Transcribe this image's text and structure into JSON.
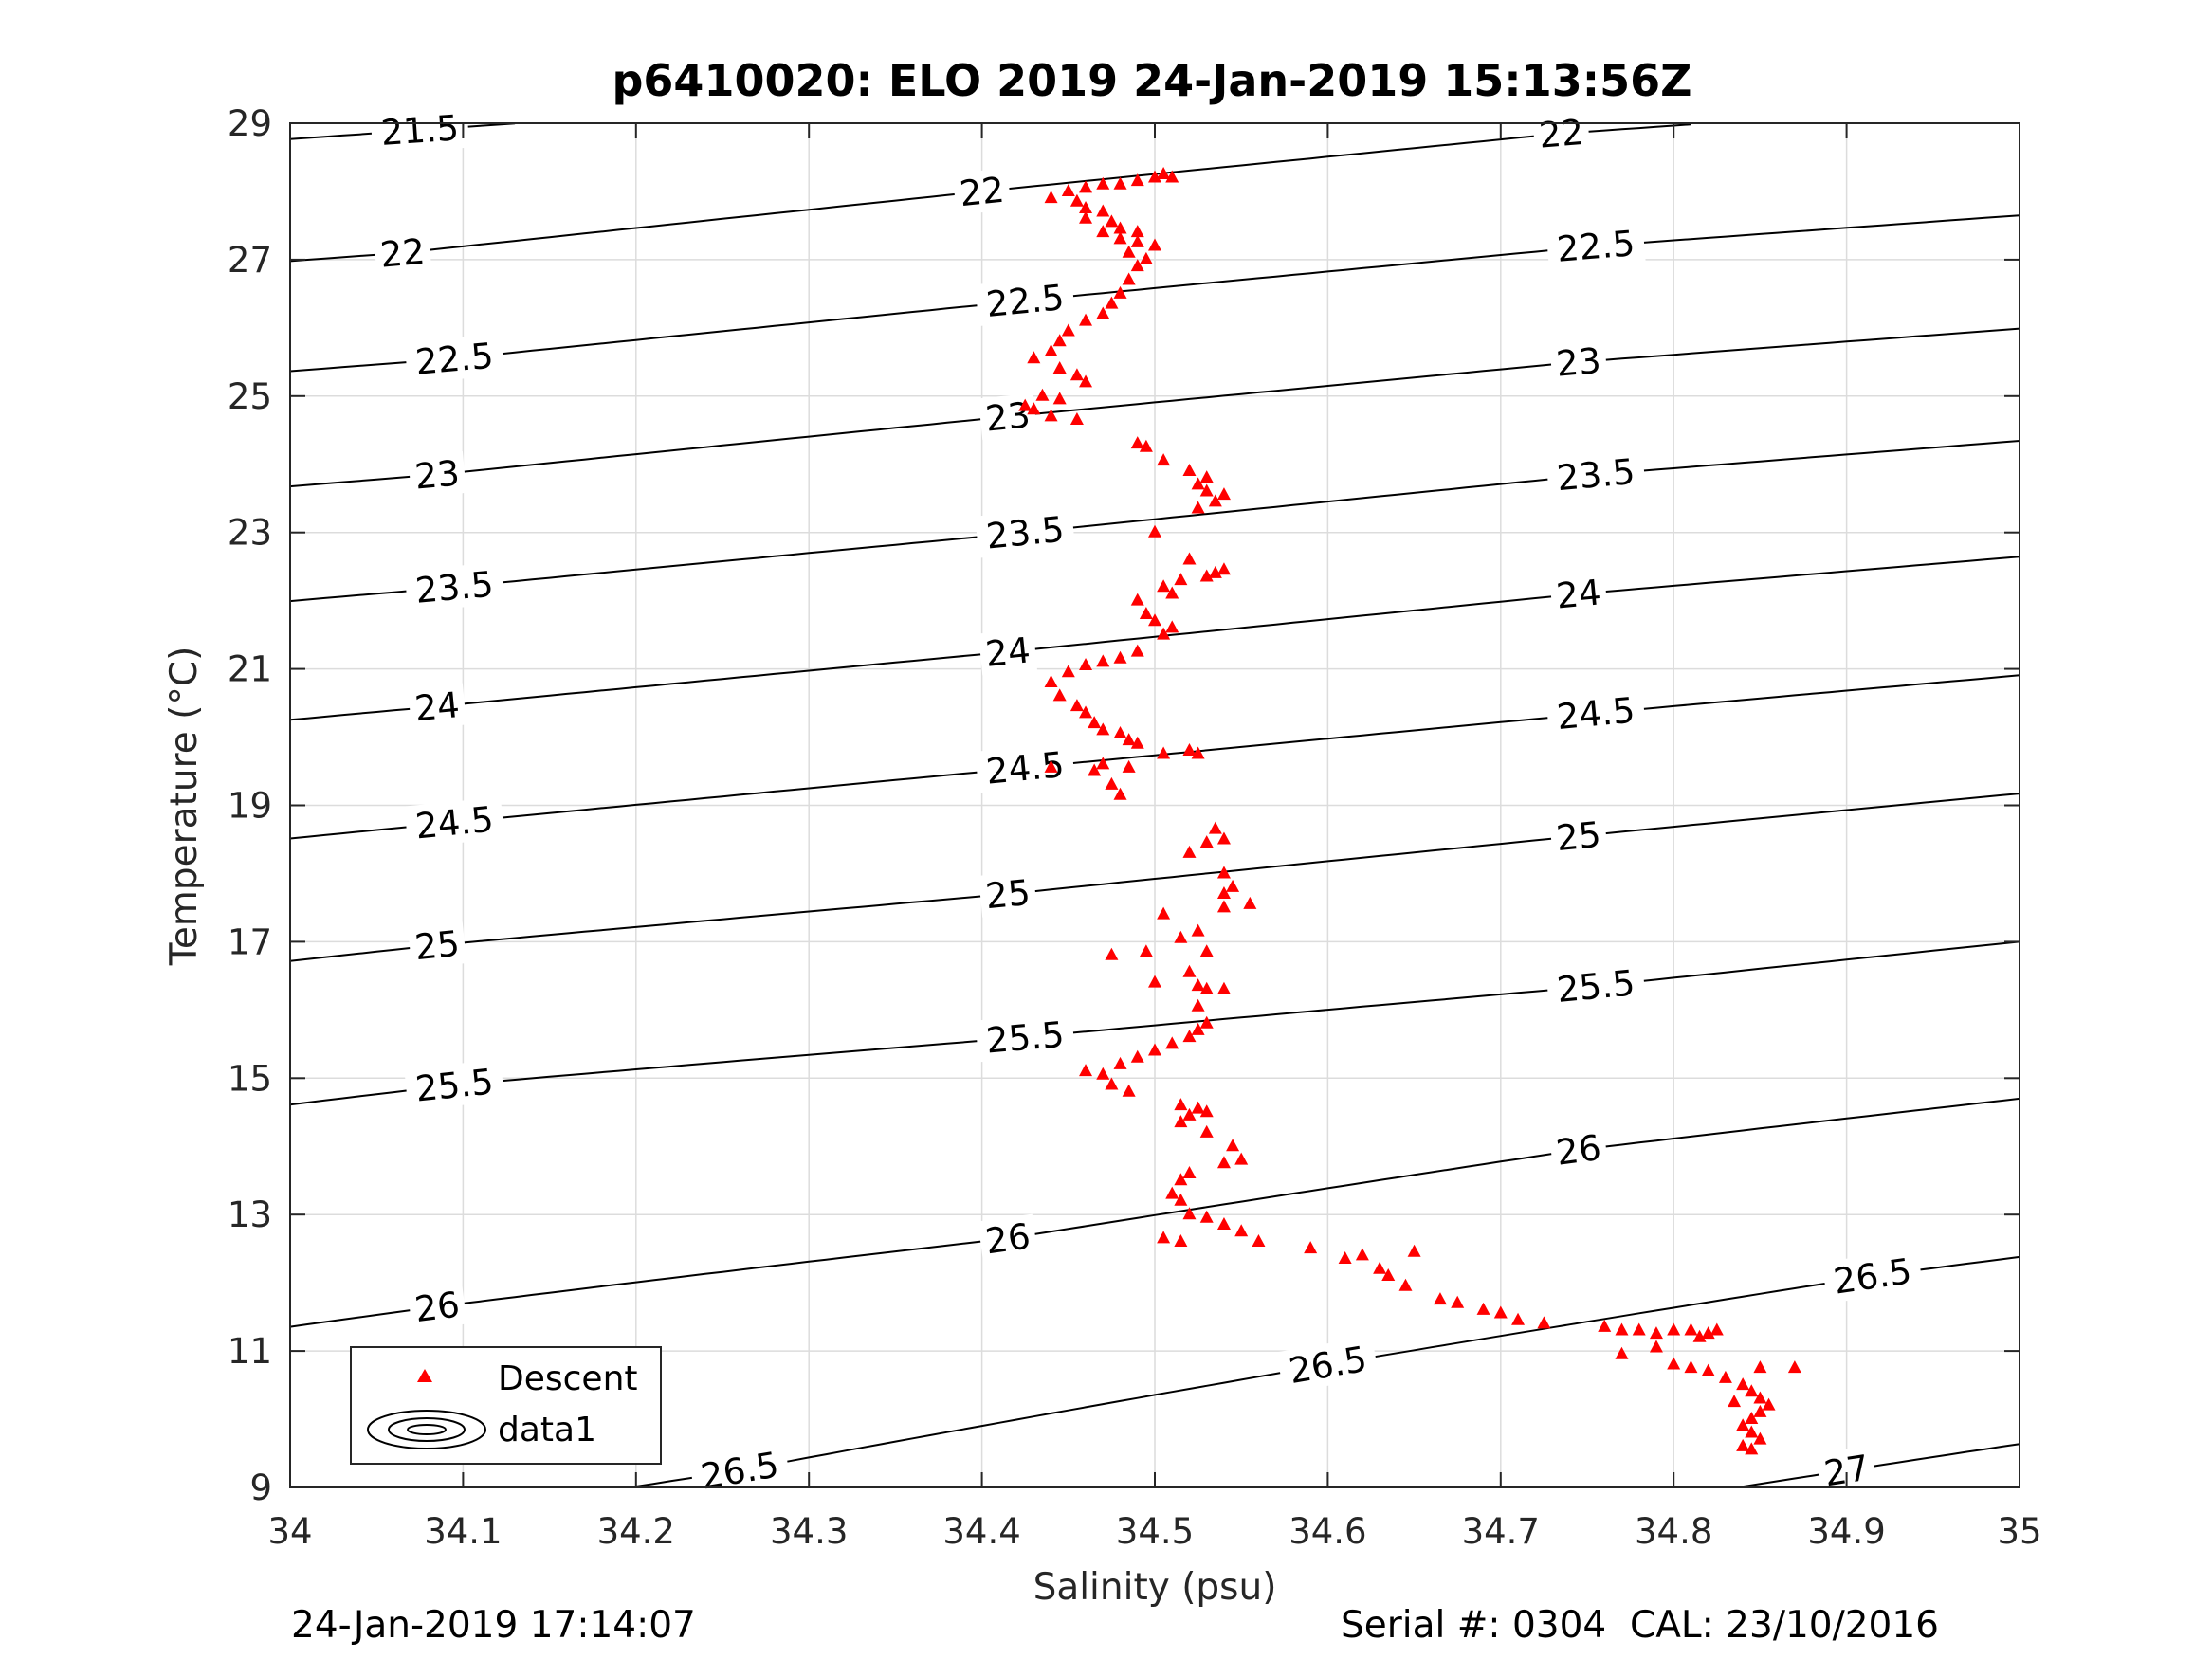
{
  "chart_data": {
    "type": "scatter",
    "title": "p6410020: ELO 2019 24-Jan-2019 15:13:56Z",
    "xlabel": "Salinity (psu)",
    "ylabel": "Temperature (°C)",
    "xlim": [
      34,
      35
    ],
    "ylim": [
      9,
      29
    ],
    "xticks": [
      34,
      34.1,
      34.2,
      34.3,
      34.4,
      34.5,
      34.6,
      34.7,
      34.8,
      34.9,
      35
    ],
    "xtick_labels": [
      "34",
      "34.1",
      "34.2",
      "34.3",
      "34.4",
      "34.5",
      "34.6",
      "34.7",
      "34.8",
      "34.9",
      "35"
    ],
    "yticks": [
      9,
      11,
      13,
      15,
      17,
      19,
      21,
      23,
      25,
      27,
      29
    ],
    "ytick_labels": [
      "9",
      "11",
      "13",
      "15",
      "17",
      "19",
      "21",
      "23",
      "25",
      "27",
      "29"
    ],
    "grid": true,
    "legend_position": "bottom-left",
    "colors": {
      "descent": "#ff0000",
      "contour": "#000000",
      "grid": "#dcdcdc"
    },
    "series": [
      {
        "name": "Descent",
        "marker": "triangle",
        "points": [
          [
            34.45,
            28.0
          ],
          [
            34.46,
            28.05
          ],
          [
            34.47,
            28.1
          ],
          [
            34.48,
            28.1
          ],
          [
            34.49,
            28.15
          ],
          [
            34.5,
            28.2
          ],
          [
            34.51,
            28.2
          ],
          [
            34.505,
            28.25
          ],
          [
            34.44,
            27.9
          ],
          [
            34.455,
            27.85
          ],
          [
            34.46,
            27.75
          ],
          [
            34.47,
            27.7
          ],
          [
            34.46,
            27.6
          ],
          [
            34.475,
            27.55
          ],
          [
            34.48,
            27.45
          ],
          [
            34.47,
            27.4
          ],
          [
            34.49,
            27.4
          ],
          [
            34.48,
            27.3
          ],
          [
            34.49,
            27.25
          ],
          [
            34.5,
            27.2
          ],
          [
            34.485,
            27.1
          ],
          [
            34.495,
            27.0
          ],
          [
            34.49,
            26.9
          ],
          [
            34.485,
            26.7
          ],
          [
            34.48,
            26.5
          ],
          [
            34.475,
            26.35
          ],
          [
            34.47,
            26.2
          ],
          [
            34.46,
            26.1
          ],
          [
            34.45,
            25.95
          ],
          [
            34.445,
            25.8
          ],
          [
            34.44,
            25.65
          ],
          [
            34.43,
            25.55
          ],
          [
            34.445,
            25.4
          ],
          [
            34.455,
            25.3
          ],
          [
            34.46,
            25.2
          ],
          [
            34.435,
            25.0
          ],
          [
            34.445,
            24.95
          ],
          [
            34.425,
            24.85
          ],
          [
            34.43,
            24.8
          ],
          [
            34.44,
            24.7
          ],
          [
            34.455,
            24.65
          ],
          [
            34.49,
            24.3
          ],
          [
            34.495,
            24.25
          ],
          [
            34.505,
            24.05
          ],
          [
            34.52,
            23.9
          ],
          [
            34.53,
            23.8
          ],
          [
            34.525,
            23.7
          ],
          [
            34.53,
            23.6
          ],
          [
            34.54,
            23.55
          ],
          [
            34.535,
            23.45
          ],
          [
            34.525,
            23.35
          ],
          [
            34.5,
            23.0
          ],
          [
            34.52,
            22.6
          ],
          [
            34.515,
            22.3
          ],
          [
            34.53,
            22.35
          ],
          [
            34.535,
            22.4
          ],
          [
            34.54,
            22.45
          ],
          [
            34.505,
            22.2
          ],
          [
            34.51,
            22.1
          ],
          [
            34.49,
            22.0
          ],
          [
            34.495,
            21.8
          ],
          [
            34.5,
            21.7
          ],
          [
            34.51,
            21.6
          ],
          [
            34.505,
            21.5
          ],
          [
            34.49,
            21.25
          ],
          [
            34.48,
            21.15
          ],
          [
            34.47,
            21.1
          ],
          [
            34.46,
            21.05
          ],
          [
            34.45,
            20.95
          ],
          [
            34.44,
            20.8
          ],
          [
            34.445,
            20.6
          ],
          [
            34.455,
            20.45
          ],
          [
            34.46,
            20.35
          ],
          [
            34.465,
            20.2
          ],
          [
            34.47,
            20.1
          ],
          [
            34.48,
            20.05
          ],
          [
            34.485,
            19.95
          ],
          [
            34.49,
            19.9
          ],
          [
            34.505,
            19.75
          ],
          [
            34.52,
            19.8
          ],
          [
            34.525,
            19.75
          ],
          [
            34.44,
            19.55
          ],
          [
            34.465,
            19.5
          ],
          [
            34.475,
            19.3
          ],
          [
            34.48,
            19.15
          ],
          [
            34.47,
            19.6
          ],
          [
            34.485,
            19.55
          ],
          [
            34.535,
            18.65
          ],
          [
            34.54,
            18.5
          ],
          [
            34.53,
            18.45
          ],
          [
            34.52,
            18.3
          ],
          [
            34.54,
            18.0
          ],
          [
            34.545,
            17.8
          ],
          [
            34.54,
            17.7
          ],
          [
            34.555,
            17.55
          ],
          [
            34.54,
            17.5
          ],
          [
            34.505,
            17.4
          ],
          [
            34.525,
            17.15
          ],
          [
            34.515,
            17.05
          ],
          [
            34.475,
            16.8
          ],
          [
            34.495,
            16.85
          ],
          [
            34.53,
            16.85
          ],
          [
            34.52,
            16.55
          ],
          [
            34.525,
            16.35
          ],
          [
            34.53,
            16.3
          ],
          [
            34.54,
            16.3
          ],
          [
            34.5,
            16.4
          ],
          [
            34.525,
            16.05
          ],
          [
            34.53,
            15.8
          ],
          [
            34.525,
            15.7
          ],
          [
            34.52,
            15.6
          ],
          [
            34.51,
            15.5
          ],
          [
            34.5,
            15.4
          ],
          [
            34.49,
            15.3
          ],
          [
            34.48,
            15.2
          ],
          [
            34.46,
            15.1
          ],
          [
            34.47,
            15.05
          ],
          [
            34.475,
            14.9
          ],
          [
            34.485,
            14.8
          ],
          [
            34.515,
            14.6
          ],
          [
            34.52,
            14.45
          ],
          [
            34.525,
            14.55
          ],
          [
            34.53,
            14.5
          ],
          [
            34.515,
            14.35
          ],
          [
            34.53,
            14.2
          ],
          [
            34.545,
            14.0
          ],
          [
            34.55,
            13.8
          ],
          [
            34.54,
            13.75
          ],
          [
            34.52,
            13.6
          ],
          [
            34.515,
            13.5
          ],
          [
            34.51,
            13.3
          ],
          [
            34.515,
            13.2
          ],
          [
            34.52,
            13.0
          ],
          [
            34.53,
            12.95
          ],
          [
            34.54,
            12.85
          ],
          [
            34.55,
            12.75
          ],
          [
            34.56,
            12.6
          ],
          [
            34.505,
            12.65
          ],
          [
            34.515,
            12.6
          ],
          [
            34.59,
            12.5
          ],
          [
            34.61,
            12.35
          ],
          [
            34.62,
            12.4
          ],
          [
            34.63,
            12.2
          ],
          [
            34.635,
            12.1
          ],
          [
            34.645,
            11.95
          ],
          [
            34.65,
            12.45
          ],
          [
            34.665,
            11.75
          ],
          [
            34.675,
            11.7
          ],
          [
            34.69,
            11.6
          ],
          [
            34.7,
            11.55
          ],
          [
            34.71,
            11.45
          ],
          [
            34.725,
            11.4
          ],
          [
            34.76,
            11.35
          ],
          [
            34.77,
            11.3
          ],
          [
            34.78,
            11.3
          ],
          [
            34.79,
            11.25
          ],
          [
            34.8,
            11.3
          ],
          [
            34.81,
            11.3
          ],
          [
            34.82,
            11.25
          ],
          [
            34.825,
            11.3
          ],
          [
            34.815,
            11.2
          ],
          [
            34.77,
            10.95
          ],
          [
            34.79,
            11.05
          ],
          [
            34.8,
            10.8
          ],
          [
            34.81,
            10.75
          ],
          [
            34.82,
            10.7
          ],
          [
            34.83,
            10.6
          ],
          [
            34.84,
            10.5
          ],
          [
            34.845,
            10.4
          ],
          [
            34.85,
            10.3
          ],
          [
            34.855,
            10.2
          ],
          [
            34.85,
            10.1
          ],
          [
            34.845,
            10.0
          ],
          [
            34.84,
            9.9
          ],
          [
            34.845,
            9.8
          ],
          [
            34.85,
            9.7
          ],
          [
            34.84,
            9.6
          ],
          [
            34.845,
            9.55
          ],
          [
            34.85,
            10.75
          ],
          [
            34.87,
            10.75
          ],
          [
            34.835,
            10.25
          ]
        ]
      }
    ],
    "isopycnals": [
      {
        "level": "21.5",
        "labels": [
          {
            "text": "21.5",
            "s": 34.075,
            "t": 28.9
          }
        ]
      },
      {
        "level": "22",
        "labels": [
          {
            "text": "22",
            "s": 34.065,
            "t": 27.1
          },
          {
            "text": "22",
            "s": 34.4,
            "t": 28.0
          },
          {
            "text": "22",
            "s": 34.735,
            "t": 28.85
          }
        ]
      },
      {
        "level": "22.5",
        "labels": [
          {
            "text": "22.5",
            "s": 34.095,
            "t": 25.55
          },
          {
            "text": "22.5",
            "s": 34.425,
            "t": 26.4
          },
          {
            "text": "22.5",
            "s": 34.755,
            "t": 27.2
          }
        ]
      },
      {
        "level": "23",
        "labels": [
          {
            "text": "23",
            "s": 34.085,
            "t": 23.85
          },
          {
            "text": "23",
            "s": 34.415,
            "t": 24.7
          },
          {
            "text": "23",
            "s": 34.745,
            "t": 25.5
          }
        ]
      },
      {
        "level": "23.5",
        "labels": [
          {
            "text": "23.5",
            "s": 34.095,
            "t": 22.2
          },
          {
            "text": "23.5",
            "s": 34.425,
            "t": 23.0
          },
          {
            "text": "23.5",
            "s": 34.755,
            "t": 23.85
          }
        ]
      },
      {
        "level": "24",
        "labels": [
          {
            "text": "24",
            "s": 34.085,
            "t": 20.45
          },
          {
            "text": "24",
            "s": 34.415,
            "t": 21.25
          },
          {
            "text": "24",
            "s": 34.745,
            "t": 22.1
          }
        ]
      },
      {
        "level": "24.5",
        "labels": [
          {
            "text": "24.5",
            "s": 34.095,
            "t": 18.75
          },
          {
            "text": "24.5",
            "s": 34.425,
            "t": 19.55
          },
          {
            "text": "24.5",
            "s": 34.755,
            "t": 20.35
          }
        ]
      },
      {
        "level": "25",
        "labels": [
          {
            "text": "25",
            "s": 34.085,
            "t": 16.95
          },
          {
            "text": "25",
            "s": 34.415,
            "t": 17.7
          },
          {
            "text": "25",
            "s": 34.745,
            "t": 18.55
          }
        ]
      },
      {
        "level": "25.5",
        "labels": [
          {
            "text": "25.5",
            "s": 34.095,
            "t": 14.9
          },
          {
            "text": "25.5",
            "s": 34.425,
            "t": 15.6
          },
          {
            "text": "25.5",
            "s": 34.755,
            "t": 16.35
          }
        ]
      },
      {
        "level": "26",
        "labels": [
          {
            "text": "26",
            "s": 34.085,
            "t": 11.65
          },
          {
            "text": "26",
            "s": 34.415,
            "t": 12.65
          },
          {
            "text": "26",
            "s": 34.745,
            "t": 13.95
          }
        ]
      },
      {
        "level": "26.5",
        "labels": [
          {
            "text": "26.5",
            "s": 34.26,
            "t": 9.25
          },
          {
            "text": "26.5",
            "s": 34.6,
            "t": 10.8
          },
          {
            "text": "26.5",
            "s": 34.915,
            "t": 12.1
          }
        ]
      },
      {
        "level": "27",
        "labels": [
          {
            "text": "27",
            "s": 34.9,
            "t": 9.25
          }
        ]
      }
    ],
    "legend": {
      "entries": [
        {
          "label": "Descent",
          "marker": "triangle"
        },
        {
          "label": "data1",
          "marker": "contour"
        }
      ]
    }
  },
  "footer": {
    "timestamp": "24-Jan-2019 17:14:07",
    "serial": "Serial #: 0304  CAL: 23/10/2016"
  }
}
